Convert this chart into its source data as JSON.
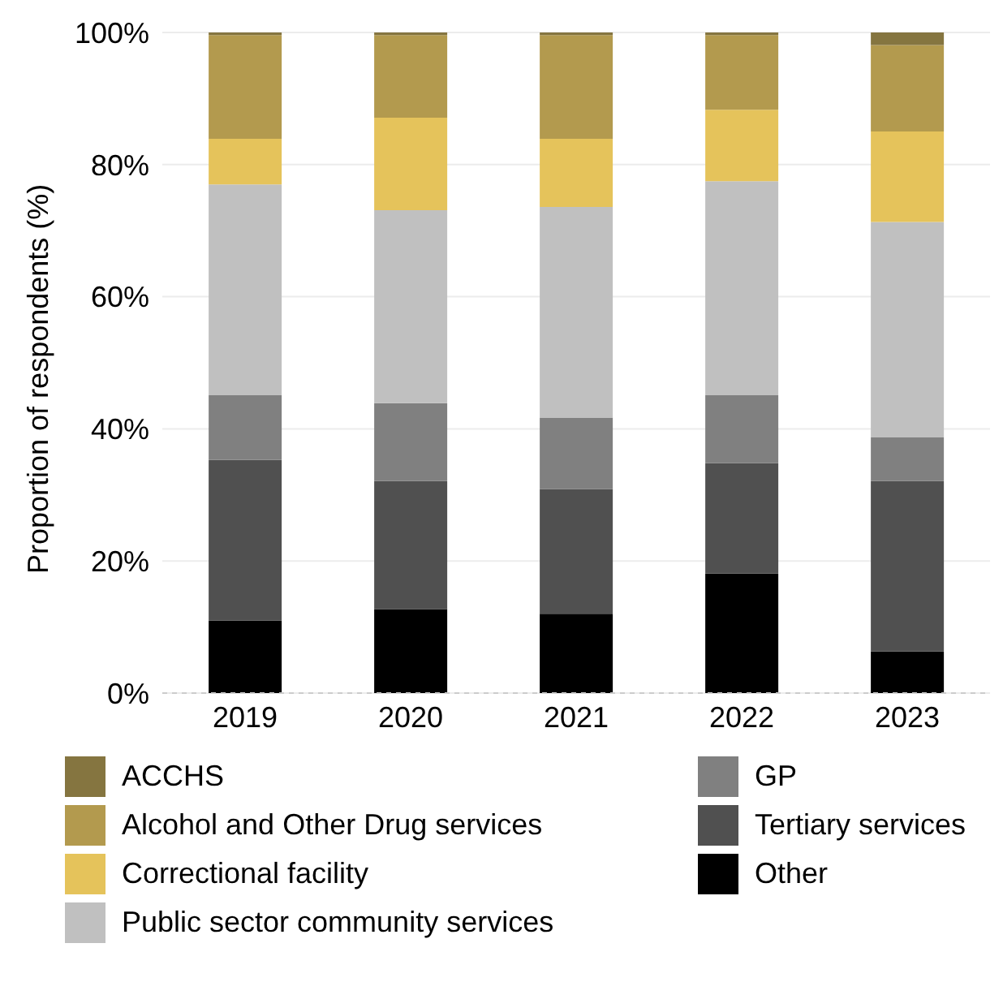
{
  "chart_data": {
    "type": "bar",
    "stacked": true,
    "ylabel": "Proportion of respondents (%)",
    "categories": [
      "2019",
      "2020",
      "2021",
      "2022",
      "2023"
    ],
    "series": [
      {
        "name": "Other",
        "color": "#000000",
        "values": [
          11.0,
          12.7,
          12.0,
          18.1,
          6.3
        ]
      },
      {
        "name": "Tertiary services",
        "color": "#505050",
        "values": [
          24.3,
          19.4,
          18.9,
          16.7,
          25.8
        ]
      },
      {
        "name": "GP",
        "color": "#808080",
        "values": [
          9.8,
          11.8,
          10.8,
          10.3,
          6.6
        ]
      },
      {
        "name": "Public sector community services",
        "color": "#c0c0c0",
        "values": [
          31.9,
          29.2,
          31.9,
          32.4,
          32.6
        ]
      },
      {
        "name": "Correctional facility",
        "color": "#e5c35b",
        "values": [
          6.9,
          14.0,
          10.3,
          10.8,
          13.7
        ]
      },
      {
        "name": "Alcohol and Other Drug services",
        "color": "#b39a4e",
        "values": [
          15.7,
          12.5,
          15.7,
          11.3,
          13.1
        ]
      },
      {
        "name": "ACCHS",
        "color": "#857540",
        "values": [
          0.4,
          0.4,
          0.4,
          0.4,
          1.9
        ]
      }
    ],
    "ylim": [
      0,
      100
    ],
    "yticks": [
      {
        "value": 0,
        "label": "0%"
      },
      {
        "value": 20,
        "label": "20%"
      },
      {
        "value": 40,
        "label": "40%"
      },
      {
        "value": 60,
        "label": "60%"
      },
      {
        "value": 80,
        "label": "80%"
      },
      {
        "value": 100,
        "label": "100%"
      }
    ],
    "grid": "y",
    "legend": "bottom"
  }
}
